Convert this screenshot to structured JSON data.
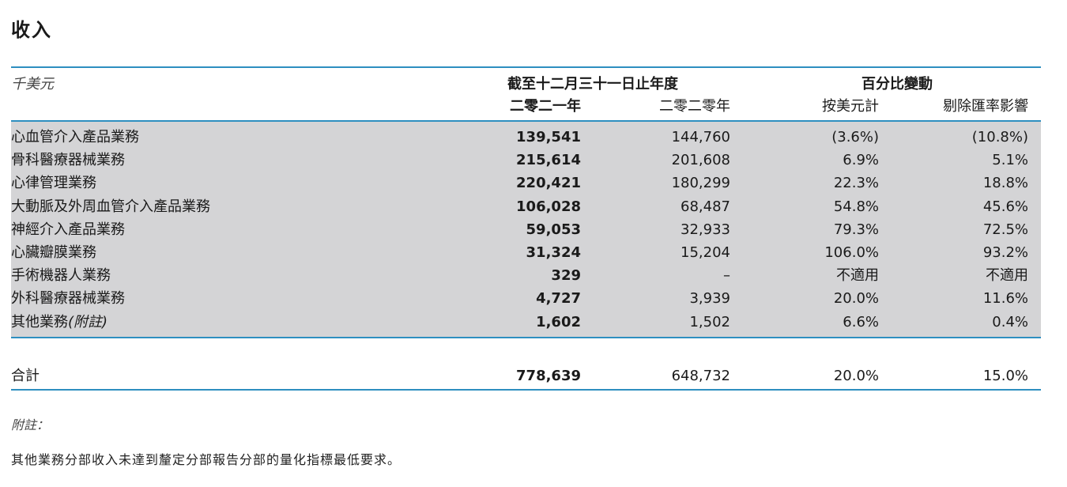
{
  "title": "收入",
  "header": {
    "unit": "千美元",
    "period_group": "截至十二月三十一日止年度",
    "year_2021": "二零二一年",
    "year_2020": "二零二零年",
    "change_group": "百分比變動",
    "change_usd": "按美元計",
    "change_fx": "剔除匯率影響"
  },
  "rows": [
    {
      "name": "心血管介入產品業務",
      "y2021": "139,541",
      "y2020": "144,760",
      "usd": "(3.6%)",
      "fx": "(10.8%)"
    },
    {
      "name": "骨科醫療器械業務",
      "y2021": "215,614",
      "y2020": "201,608",
      "usd": "6.9%",
      "fx": "5.1%"
    },
    {
      "name": "心律管理業務",
      "y2021": "220,421",
      "y2020": "180,299",
      "usd": "22.3%",
      "fx": "18.8%"
    },
    {
      "name": "大動脈及外周血管介入產品業務",
      "y2021": "106,028",
      "y2020": "68,487",
      "usd": "54.8%",
      "fx": "45.6%"
    },
    {
      "name": "神經介入產品業務",
      "y2021": "59,053",
      "y2020": "32,933",
      "usd": "79.3%",
      "fx": "72.5%"
    },
    {
      "name": "心臟瓣膜業務",
      "y2021": "31,324",
      "y2020": "15,204",
      "usd": "106.0%",
      "fx": "93.2%"
    },
    {
      "name": "手術機器人業務",
      "y2021": "329",
      "y2020": "–",
      "usd": "不適用",
      "fx": "不適用"
    },
    {
      "name": "外科醫療器械業務",
      "y2021": "4,727",
      "y2020": "3,939",
      "usd": "20.0%",
      "fx": "11.6%"
    },
    {
      "name": "其他業務",
      "name_note": "(附註)",
      "y2021": "1,602",
      "y2020": "1,502",
      "usd": "6.6%",
      "fx": "0.4%"
    }
  ],
  "total": {
    "name": "合計",
    "y2021": "778,639",
    "y2020": "648,732",
    "usd": "20.0%",
    "fx": "15.0%"
  },
  "note": {
    "title": "附註：",
    "text": "其他業務分部收入未達到釐定分部報告分部的量化指標最低要求。"
  },
  "colors": {
    "rule": "#2e8fc0",
    "shade": "#d4d4d6"
  }
}
